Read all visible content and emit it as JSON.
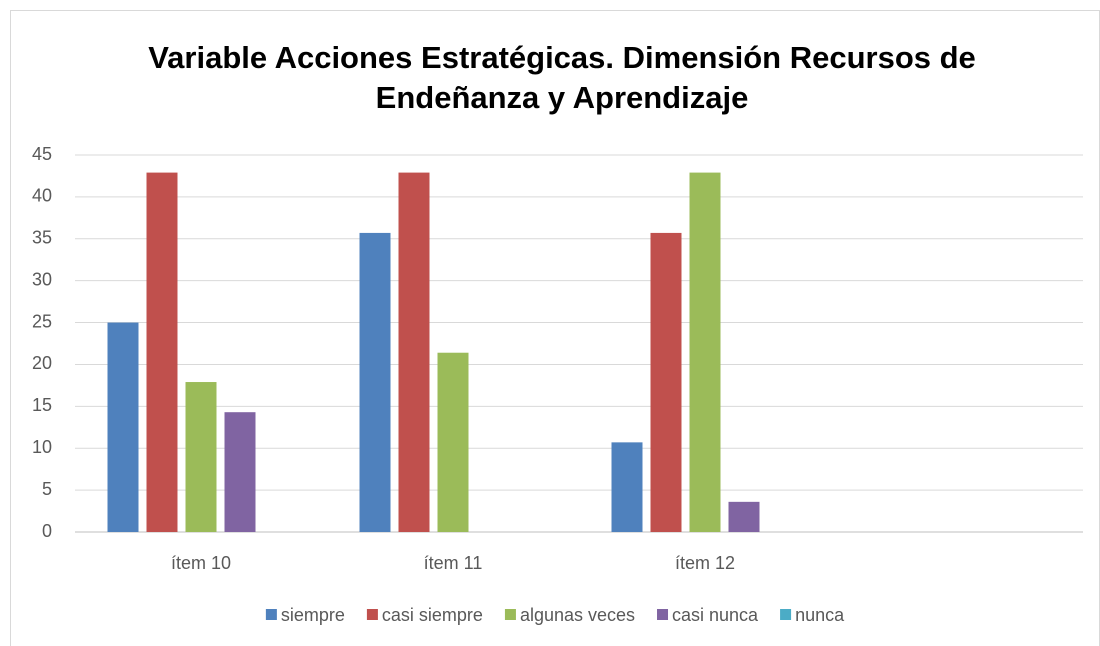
{
  "chart_data": {
    "type": "bar",
    "title": "Variable Acciones Estratégicas. Dimensión Recursos de Endeñanza y Aprendizaje",
    "categories": [
      "ítem 10",
      "ítem 11",
      "ítem 12",
      null
    ],
    "series": [
      {
        "name": "siempre",
        "color": "#4f81bd",
        "values": [
          25,
          35.7,
          10.7,
          null
        ]
      },
      {
        "name": "casi siempre",
        "color": "#c0504d",
        "values": [
          42.9,
          42.9,
          35.7,
          null
        ]
      },
      {
        "name": "algunas veces",
        "color": "#9bbb59",
        "values": [
          17.9,
          21.4,
          42.9,
          null
        ]
      },
      {
        "name": "casi nunca",
        "color": "#8064a2",
        "values": [
          14.3,
          0,
          3.6,
          null
        ]
      },
      {
        "name": "nunca",
        "color": "#4bacc6",
        "values": [
          0,
          0,
          0,
          null
        ]
      }
    ],
    "ylim": [
      0,
      45
    ],
    "yticks": [
      0,
      5,
      10,
      15,
      20,
      25,
      30,
      35,
      40,
      45
    ],
    "grid": true,
    "legend": "bottom"
  }
}
